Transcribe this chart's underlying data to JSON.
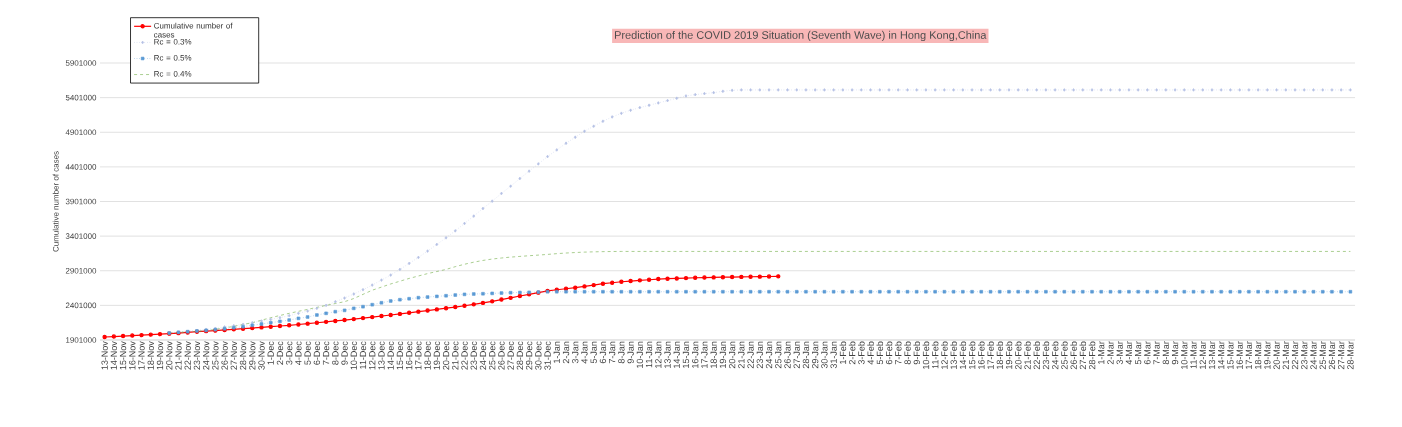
{
  "chart_data": {
    "type": "line",
    "title": "Prediction of the COVID 2019 Situation (Seventh Wave) in Hong Kong,China",
    "ylabel": "Cumulative number of cases",
    "categories": [
      "13-Nov",
      "14-Nov",
      "15-Nov",
      "16-Nov",
      "17-Nov",
      "18-Nov",
      "19-Nov",
      "20-Nov",
      "21-Nov",
      "22-Nov",
      "23-Nov",
      "24-Nov",
      "25-Nov",
      "26-Nov",
      "27-Nov",
      "28-Nov",
      "29-Nov",
      "30-Nov",
      "1-Dec",
      "2-Dec",
      "3-Dec",
      "4-Dec",
      "5-Dec",
      "6-Dec",
      "7-Dec",
      "8-Dec",
      "9-Dec",
      "10-Dec",
      "11-Dec",
      "12-Dec",
      "13-Dec",
      "14-Dec",
      "15-Dec",
      "16-Dec",
      "17-Dec",
      "18-Dec",
      "19-Dec",
      "20-Dec",
      "21-Dec",
      "22-Dec",
      "23-Dec",
      "24-Dec",
      "25-Dec",
      "26-Dec",
      "27-Dec",
      "28-Dec",
      "29-Dec",
      "30-Dec",
      "31-Dec",
      "1-Jan",
      "2-Jan",
      "3-Jan",
      "4-Jan",
      "5-Jan",
      "6-Jan",
      "7-Jan",
      "8-Jan",
      "9-Jan",
      "10-Jan",
      "11-Jan",
      "12-Jan",
      "13-Jan",
      "14-Jan",
      "15-Jan",
      "16-Jan",
      "17-Jan",
      "18-Jan",
      "19-Jan",
      "20-Jan",
      "21-Jan",
      "22-Jan",
      "23-Jan",
      "24-Jan",
      "25-Jan",
      "26-Jan",
      "27-Jan",
      "28-Jan",
      "29-Jan",
      "30-Jan",
      "31-Jan",
      "1-Feb",
      "2-Feb",
      "3-Feb",
      "4-Feb",
      "5-Feb",
      "6-Feb",
      "7-Feb",
      "8-Feb",
      "9-Feb",
      "10-Feb",
      "11-Feb",
      "12-Feb",
      "13-Feb",
      "14-Feb",
      "15-Feb",
      "16-Feb",
      "17-Feb",
      "18-Feb",
      "19-Feb",
      "20-Feb",
      "21-Feb",
      "22-Feb",
      "23-Feb",
      "24-Feb",
      "25-Feb",
      "26-Feb",
      "27-Feb",
      "28-Feb",
      "1-Mar",
      "2-Mar",
      "3-Mar",
      "4-Mar",
      "5-Mar",
      "6-Mar",
      "7-Mar",
      "8-Mar",
      "9-Mar",
      "10-Mar",
      "11-Mar",
      "12-Mar",
      "13-Mar",
      "14-Mar",
      "15-Mar",
      "16-Mar",
      "17-Mar",
      "18-Mar",
      "19-Mar",
      "20-Mar",
      "21-Mar",
      "22-Mar",
      "23-Mar",
      "24-Mar",
      "25-Mar",
      "26-Mar",
      "27-Mar",
      "28-Mar"
    ],
    "series": [
      {
        "name": "Cumulative number of cases",
        "color": "#ff0000",
        "marker": "circle",
        "line_style": "solid",
        "values": [
          1944000,
          1951000,
          1958000,
          1965000,
          1972000,
          1979000,
          1986000,
          1993000,
          2000000,
          2010000,
          2021000,
          2029000,
          2037000,
          2046000,
          2055000,
          2064000,
          2073000,
          2083000,
          2093000,
          2103000,
          2113000,
          2125000,
          2137000,
          2150000,
          2163000,
          2176000,
          2189000,
          2203000,
          2217000,
          2232000,
          2247000,
          2262000,
          2278000,
          2294000,
          2310000,
          2326000,
          2343000,
          2360000,
          2377000,
          2396000,
          2416000,
          2437000,
          2459000,
          2485000,
          2510000,
          2536000,
          2560000,
          2585000,
          2610000,
          2627000,
          2641000,
          2656000,
          2675000,
          2694000,
          2714000,
          2728000,
          2742000,
          2752000,
          2762000,
          2771000,
          2781000,
          2786000,
          2790000,
          2795000,
          2800000,
          2803000,
          2805000,
          2808000,
          2810000,
          2812000,
          2814000,
          2816000,
          2818000,
          2820000,
          null,
          null,
          null,
          null,
          null,
          null,
          null,
          null,
          null,
          null,
          null,
          null,
          null,
          null,
          null,
          null,
          null,
          null,
          null,
          null,
          null,
          null,
          null,
          null,
          null,
          null,
          null,
          null,
          null,
          null,
          null,
          null,
          null,
          null,
          null,
          null,
          null,
          null,
          null,
          null,
          null,
          null,
          null,
          null,
          null,
          null,
          null,
          null,
          null,
          null,
          null,
          null,
          null,
          null,
          null,
          null,
          null,
          null,
          null,
          null,
          null,
          null
        ]
      },
      {
        "name": "Rc = 0.3%",
        "color": "#b4c0e4",
        "marker": "diamond",
        "line_style": "dotted",
        "values": [
          null,
          null,
          null,
          null,
          null,
          null,
          null,
          2002000,
          2016000,
          2026000,
          2040000,
          2055000,
          2069000,
          2089000,
          2108000,
          2127000,
          2151000,
          2175000,
          2199000,
          2223000,
          2252000,
          2286000,
          2319000,
          2358000,
          2401000,
          2454000,
          2507000,
          2565000,
          2627000,
          2694000,
          2766000,
          2839000,
          2920000,
          3007000,
          3093000,
          3185000,
          3281000,
          3377000,
          3478000,
          3584000,
          3690000,
          3800000,
          3906000,
          4017000,
          4122000,
          4233000,
          4339000,
          4444000,
          4550000,
          4646000,
          4742000,
          4829000,
          4916000,
          4988000,
          5060000,
          5122000,
          5175000,
          5219000,
          5257000,
          5291000,
          5324000,
          5358000,
          5392000,
          5425000,
          5444000,
          5459000,
          5473000,
          5493000,
          5507000,
          5512000,
          5512000,
          5512000,
          5512000,
          5512000,
          5512000,
          5512000,
          5512000,
          5512000,
          5512000,
          5512000,
          5512000,
          5512000,
          5512000,
          5512000,
          5512000,
          5512000,
          5512000,
          5512000,
          5512000,
          5512000,
          5512000,
          5512000,
          5512000,
          5512000,
          5512000,
          5512000,
          5512000,
          5512000,
          5512000,
          5512000,
          5512000,
          5512000,
          5512000,
          5512000,
          5512000,
          5512000,
          5512000,
          5512000,
          5512000,
          5512000,
          5512000,
          5512000,
          5512000,
          5512000,
          5512000,
          5512000,
          5512000,
          5512000,
          5512000,
          5512000,
          5512000,
          5512000,
          5512000,
          5512000,
          5512000,
          5512000,
          5512000,
          5512000,
          5512000,
          5512000,
          5512000,
          5512000,
          5512000,
          5512000,
          5512000,
          5512000
        ]
      },
      {
        "name": "Rc = 0.5%",
        "color": "#5b9bd5",
        "marker": "square",
        "line_style": "dotted",
        "values": [
          null,
          null,
          null,
          null,
          null,
          null,
          null,
          2002000,
          2012000,
          2021000,
          2031000,
          2040000,
          2050000,
          2064000,
          2079000,
          2093000,
          2113000,
          2132000,
          2151000,
          2170000,
          2189000,
          2213000,
          2233000,
          2262000,
          2286000,
          2310000,
          2329000,
          2358000,
          2382000,
          2411000,
          2439000,
          2464000,
          2483000,
          2497000,
          2512000,
          2521000,
          2531000,
          2540000,
          2550000,
          2560000,
          2565000,
          2569000,
          2574000,
          2579000,
          2584000,
          2587000,
          2589000,
          2593000,
          2598000,
          2598000,
          2598000,
          2598000,
          2598000,
          2598000,
          2598000,
          2598000,
          2598000,
          2598000,
          2598000,
          2598000,
          2598000,
          2598000,
          2598000,
          2598000,
          2598000,
          2598000,
          2598000,
          2598000,
          2598000,
          2598000,
          2598000,
          2598000,
          2598000,
          2598000,
          2598000,
          2598000,
          2598000,
          2598000,
          2598000,
          2598000,
          2598000,
          2598000,
          2598000,
          2598000,
          2598000,
          2598000,
          2598000,
          2598000,
          2598000,
          2598000,
          2598000,
          2598000,
          2598000,
          2598000,
          2598000,
          2598000,
          2598000,
          2598000,
          2598000,
          2598000,
          2598000,
          2598000,
          2598000,
          2598000,
          2598000,
          2598000,
          2598000,
          2598000,
          2598000,
          2598000,
          2598000,
          2598000,
          2598000,
          2598000,
          2598000,
          2598000,
          2598000,
          2598000,
          2598000,
          2598000,
          2598000,
          2598000,
          2598000,
          2598000,
          2598000,
          2598000,
          2598000,
          2598000,
          2598000,
          2598000,
          2598000,
          2598000,
          2598000,
          2598000,
          2598000,
          2598000
        ]
      },
      {
        "name": "Rc = 0.4%",
        "color": "#70ad47",
        "marker": "none",
        "line_style": "dashed",
        "values": [
          null,
          null,
          null,
          null,
          null,
          null,
          null,
          2002000,
          2010000,
          2019000,
          2026000,
          2035000,
          2055000,
          2075000,
          2098000,
          2125000,
          2151000,
          2187000,
          2223000,
          2255000,
          2286000,
          2315000,
          2343000,
          2372000,
          2401000,
          2428000,
          2454000,
          2500000,
          2560000,
          2620000,
          2665000,
          2710000,
          2750000,
          2790000,
          2825000,
          2860000,
          2890000,
          2920000,
          2960000,
          2995000,
          3025000,
          3050000,
          3070000,
          3085000,
          3098000,
          3108000,
          3118000,
          3127000,
          3137000,
          3148000,
          3157000,
          3164000,
          3170000,
          3174000,
          3177000,
          3179000,
          3180000,
          3180000,
          3180000,
          3180000,
          3180000,
          3180000,
          3180000,
          3180000,
          3180000,
          3180000,
          3180000,
          3180000,
          3180000,
          3180000,
          3180000,
          3180000,
          3180000,
          3180000,
          3180000,
          3180000,
          3180000,
          3180000,
          3180000,
          3180000,
          3180000,
          3180000,
          3180000,
          3180000,
          3180000,
          3180000,
          3180000,
          3180000,
          3180000,
          3180000,
          3180000,
          3180000,
          3180000,
          3180000,
          3180000,
          3180000,
          3180000,
          3180000,
          3180000,
          3180000,
          3180000,
          3180000,
          3180000,
          3180000,
          3180000,
          3180000,
          3180000,
          3180000,
          3180000,
          3180000,
          3180000,
          3180000,
          3180000,
          3180000,
          3180000,
          3180000,
          3180000,
          3180000,
          3180000,
          3180000,
          3180000,
          3180000,
          3180000,
          3180000,
          3180000,
          3180000,
          3180000,
          3180000,
          3180000,
          3180000,
          3180000,
          3180000,
          3180000,
          3180000,
          3180000,
          3180000
        ]
      }
    ],
    "ylim": [
      1901000,
      5901000
    ],
    "yticks": [
      1901000,
      2401000,
      2901000,
      3401000,
      3901000,
      4401000,
      4901000,
      5401000,
      5901000
    ],
    "grid": "y",
    "legend": "top left"
  }
}
